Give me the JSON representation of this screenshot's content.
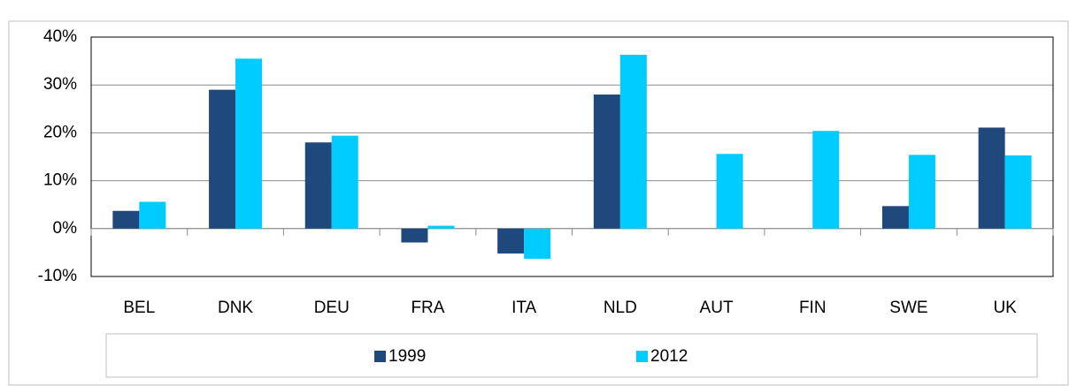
{
  "chart_data": {
    "type": "bar",
    "categories": [
      "BEL",
      "DNK",
      "DEU",
      "FRA",
      "ITA",
      "NLD",
      "AUT",
      "FIN",
      "SWE",
      "UK"
    ],
    "series": [
      {
        "name": "1999",
        "color": "#1f497d",
        "values": [
          3.7,
          29,
          18,
          -2.9,
          -5.2,
          28,
          null,
          null,
          4.7,
          21.1
        ]
      },
      {
        "name": "2012",
        "color": "#00ccff",
        "values": [
          5.6,
          35.5,
          19.4,
          0.6,
          -6.3,
          36.3,
          15.6,
          20.4,
          15.4,
          15.3
        ]
      }
    ],
    "ylim": [
      -10,
      40
    ],
    "yticks": [
      {
        "value": -10,
        "label": "-10%"
      },
      {
        "value": 0,
        "label": "0%"
      },
      {
        "value": 10,
        "label": "10%"
      },
      {
        "value": 20,
        "label": "20%"
      },
      {
        "value": 30,
        "label": "30%"
      },
      {
        "value": 40,
        "label": "40%"
      }
    ],
    "grid": true,
    "legend": "bottom"
  }
}
